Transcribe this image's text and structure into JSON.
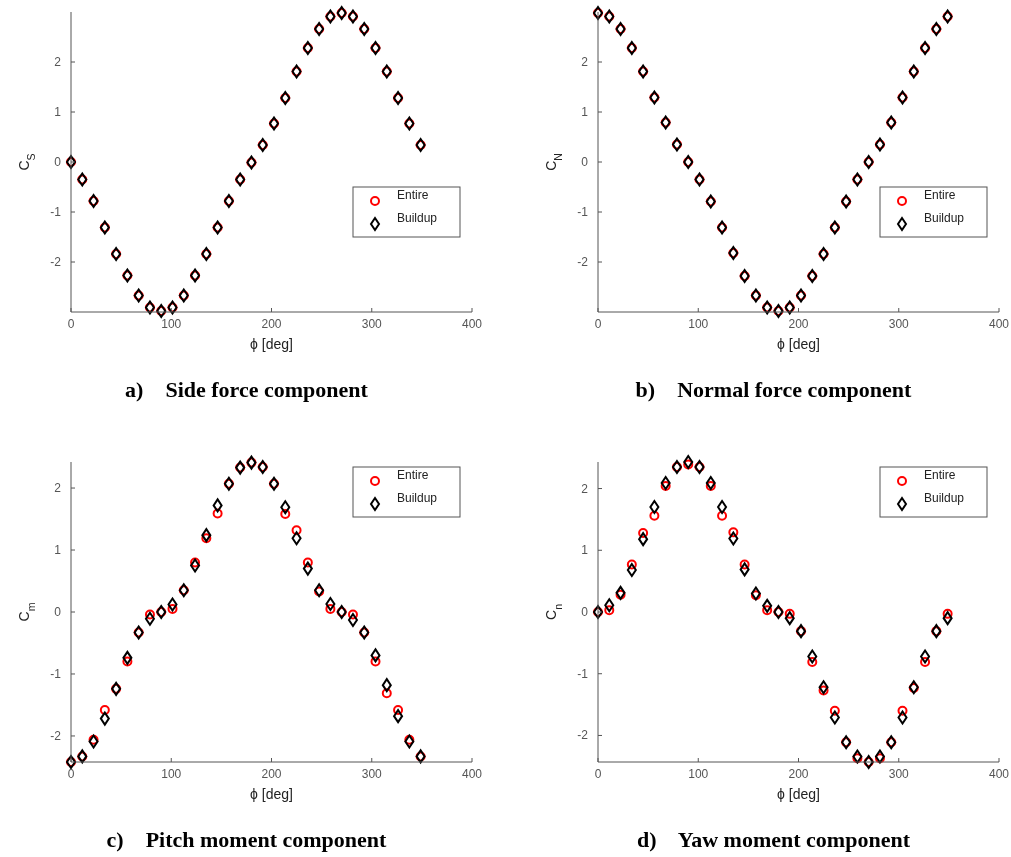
{
  "chart_data": [
    {
      "type": "scatter",
      "title": "a)    Side force component",
      "xlabel": "ϕ [deg]",
      "ylabel": "C$_{S}$",
      "xlim": [
        0,
        400
      ],
      "xticks": [
        0,
        100,
        200,
        300,
        400
      ],
      "ylim": [
        -3,
        3
      ],
      "yticks": [
        -2,
        -1,
        0,
        1,
        2
      ],
      "legend": "right",
      "grid": false,
      "x": [
        0,
        11.25,
        22.5,
        33.75,
        45,
        56.25,
        67.5,
        78.75,
        90,
        101.25,
        112.5,
        123.75,
        135,
        146.25,
        157.5,
        168.75,
        180,
        191.25,
        202.5,
        213.75,
        225,
        236.25,
        247.5,
        258.75,
        270,
        281.25,
        292.5,
        303.75,
        315,
        326.25,
        337.5,
        348.75
      ],
      "series": [
        {
          "name": "Entire",
          "color": "#ff0000",
          "marker": "circle",
          "values": [
            0,
            -0.35,
            -0.78,
            -1.31,
            -1.84,
            -2.27,
            -2.67,
            -2.91,
            -2.98,
            -2.91,
            -2.67,
            -2.27,
            -1.84,
            -1.31,
            -0.78,
            -0.35,
            -0.01,
            0.34,
            0.77,
            1.28,
            1.81,
            2.28,
            2.66,
            2.91,
            2.98,
            2.91,
            2.66,
            2.28,
            1.81,
            1.28,
            0.77,
            0.34
          ]
        },
        {
          "name": "Buildup",
          "color": "#000000",
          "marker": "diamond",
          "values": [
            0,
            -0.35,
            -0.78,
            -1.31,
            -1.84,
            -2.27,
            -2.67,
            -2.91,
            -2.98,
            -2.91,
            -2.67,
            -2.27,
            -1.84,
            -1.31,
            -0.78,
            -0.35,
            -0.01,
            0.34,
            0.77,
            1.28,
            1.81,
            2.28,
            2.66,
            2.91,
            2.98,
            2.91,
            2.66,
            2.28,
            1.81,
            1.28,
            0.77,
            0.34
          ]
        }
      ]
    },
    {
      "type": "scatter",
      "title": "b)    Normal force component",
      "xlabel": "ϕ [deg]",
      "ylabel": "C$_{N}$",
      "xlim": [
        0,
        400
      ],
      "xticks": [
        0,
        100,
        200,
        300,
        400
      ],
      "ylim": [
        -3,
        3
      ],
      "yticks": [
        -2,
        -1,
        0,
        1,
        2
      ],
      "legend": "right",
      "grid": false,
      "x": [
        0,
        11.25,
        22.5,
        33.75,
        45,
        56.25,
        67.5,
        78.75,
        90,
        101.25,
        112.5,
        123.75,
        135,
        146.25,
        157.5,
        168.75,
        180,
        191.25,
        202.5,
        213.75,
        225,
        236.25,
        247.5,
        258.75,
        270,
        281.25,
        292.5,
        303.75,
        315,
        326.25,
        337.5,
        348.75
      ],
      "series": [
        {
          "name": "Entire",
          "color": "#ff0000",
          "marker": "circle",
          "values": [
            2.98,
            2.91,
            2.66,
            2.28,
            1.81,
            1.29,
            0.79,
            0.35,
            0,
            -0.35,
            -0.79,
            -1.31,
            -1.82,
            -2.28,
            -2.67,
            -2.91,
            -2.98,
            -2.91,
            -2.67,
            -2.28,
            -1.84,
            -1.31,
            -0.79,
            -0.35,
            0,
            0.35,
            0.79,
            1.29,
            1.81,
            2.28,
            2.66,
            2.91
          ]
        },
        {
          "name": "Buildup",
          "color": "#000000",
          "marker": "diamond",
          "values": [
            2.98,
            2.91,
            2.66,
            2.28,
            1.81,
            1.29,
            0.79,
            0.35,
            0,
            -0.35,
            -0.79,
            -1.31,
            -1.82,
            -2.28,
            -2.67,
            -2.91,
            -2.98,
            -2.91,
            -2.67,
            -2.28,
            -1.84,
            -1.31,
            -0.79,
            -0.35,
            0,
            0.35,
            0.79,
            1.29,
            1.81,
            2.28,
            2.66,
            2.91
          ]
        }
      ]
    },
    {
      "type": "scatter",
      "title": "c)    Pitch moment component",
      "xlabel": "ϕ [deg]",
      "ylabel": "C$_{m}$",
      "xlim": [
        0,
        400
      ],
      "xticks": [
        0,
        100,
        200,
        300,
        400
      ],
      "ylim": [
        -2.42,
        2.42
      ],
      "yticks": [
        -2,
        -1,
        0,
        1,
        2
      ],
      "legend": "top right",
      "grid": false,
      "x": [
        0,
        11.25,
        22.5,
        33.75,
        45,
        56.25,
        67.5,
        78.75,
        90,
        101.25,
        112.5,
        123.75,
        135,
        146.25,
        157.5,
        168.75,
        180,
        191.25,
        202.5,
        213.75,
        225,
        236.25,
        247.5,
        258.75,
        270,
        281.25,
        292.5,
        303.75,
        315,
        326.25,
        337.5,
        348.75
      ],
      "series": [
        {
          "name": "Entire",
          "color": "#ff0000",
          "marker": "circle",
          "values": [
            -2.42,
            -2.33,
            -2.06,
            -1.58,
            -1.24,
            -0.8,
            -0.33,
            -0.04,
            0,
            0.05,
            0.35,
            0.8,
            1.19,
            1.59,
            2.07,
            2.33,
            2.41,
            2.34,
            2.07,
            1.58,
            1.32,
            0.8,
            0.33,
            0.05,
            0,
            -0.04,
            -0.33,
            -0.8,
            -1.31,
            -1.58,
            -2.06,
            -2.33
          ]
        },
        {
          "name": "Buildup",
          "color": "#000000",
          "marker": "diamond",
          "values": [
            -2.42,
            -2.33,
            -2.09,
            -1.72,
            -1.24,
            -0.74,
            -0.33,
            -0.11,
            0,
            0.12,
            0.35,
            0.75,
            1.24,
            1.72,
            2.07,
            2.33,
            2.41,
            2.34,
            2.07,
            1.69,
            1.19,
            0.7,
            0.35,
            0.13,
            0,
            -0.13,
            -0.33,
            -0.7,
            -1.18,
            -1.68,
            -2.09,
            -2.33
          ]
        }
      ]
    },
    {
      "type": "scatter",
      "title": "d)    Yaw moment component",
      "xlabel": "ϕ [deg]",
      "ylabel": "C$_{n}$",
      "xlim": [
        0,
        400
      ],
      "xticks": [
        0,
        100,
        200,
        300,
        400
      ],
      "ylim": [
        -2.43,
        2.43
      ],
      "yticks": [
        -2,
        -1,
        0,
        1,
        2
      ],
      "legend": "top right",
      "grid": false,
      "x": [
        0,
        11.25,
        22.5,
        33.75,
        45,
        56.25,
        67.5,
        78.75,
        90,
        101.25,
        112.5,
        123.75,
        135,
        146.25,
        157.5,
        168.75,
        180,
        191.25,
        202.5,
        213.75,
        225,
        236.25,
        247.5,
        258.75,
        270,
        281.25,
        292.5,
        303.75,
        315,
        326.25,
        337.5,
        348.75
      ],
      "series": [
        {
          "name": "Entire",
          "color": "#ff0000",
          "marker": "circle",
          "values": [
            0,
            0.03,
            0.28,
            0.77,
            1.28,
            1.56,
            2.04,
            2.35,
            2.39,
            2.35,
            2.04,
            1.56,
            1.29,
            0.77,
            0.27,
            0.03,
            0,
            -0.03,
            -0.31,
            -0.81,
            -1.27,
            -1.6,
            -2.11,
            -2.37,
            -2.43,
            -2.37,
            -2.11,
            -1.6,
            -1.23,
            -0.81,
            -0.31,
            -0.03
          ]
        },
        {
          "name": "Buildup",
          "color": "#000000",
          "marker": "diamond",
          "values": [
            0,
            0.11,
            0.31,
            0.68,
            1.18,
            1.7,
            2.09,
            2.35,
            2.43,
            2.35,
            2.09,
            1.7,
            1.19,
            0.69,
            0.3,
            0.1,
            0,
            -0.1,
            -0.31,
            -0.72,
            -1.22,
            -1.71,
            -2.11,
            -2.34,
            -2.43,
            -2.34,
            -2.11,
            -1.71,
            -1.22,
            -0.72,
            -0.31,
            -0.1
          ]
        }
      ]
    }
  ]
}
